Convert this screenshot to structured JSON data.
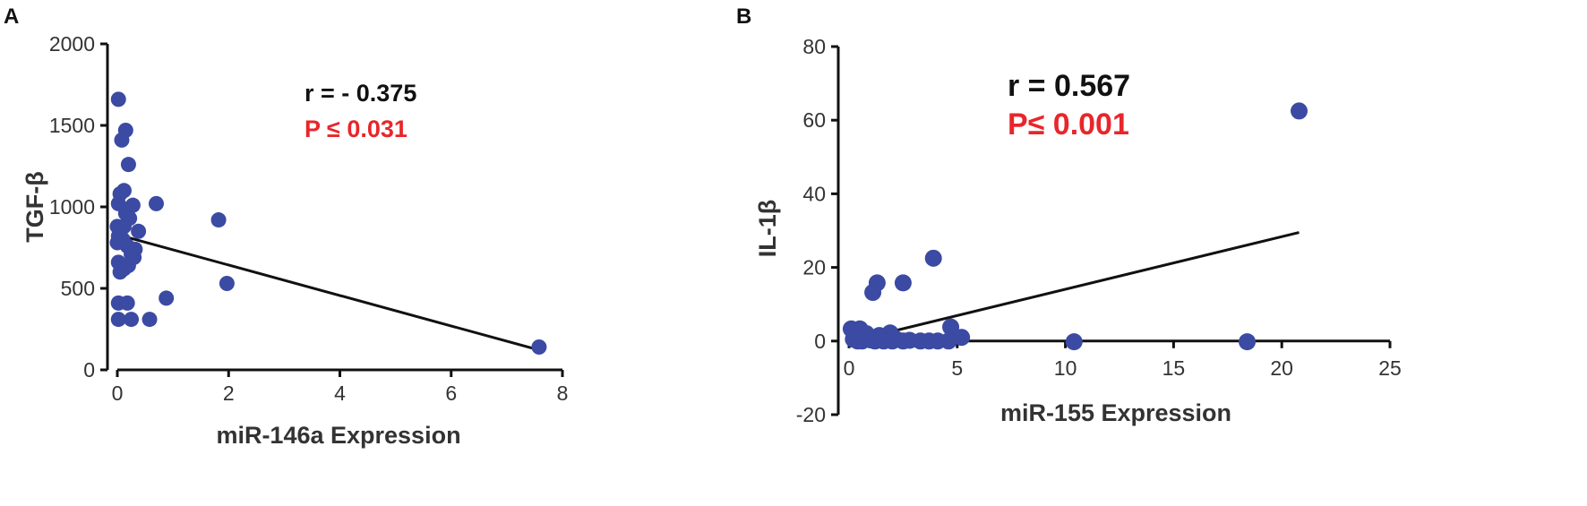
{
  "colors": {
    "point": "#3b4aa3",
    "line": "#111111",
    "p_value": "#e8262b",
    "axis": "#111111"
  },
  "chart_data": [
    {
      "panel": "A",
      "type": "scatter",
      "xlabel": "miR-146a Expression",
      "ylabel": "TGF-β",
      "xlim": [
        0,
        8
      ],
      "ylim": [
        0,
        2000
      ],
      "xticks": [
        "0",
        "2",
        "4",
        "6",
        "8"
      ],
      "yticks": [
        "0",
        "500",
        "1000",
        "1500",
        "2000"
      ],
      "annotations": {
        "r": "r = - 0.375",
        "p": "P ≤ 0.031"
      },
      "trendline": [
        [
          0,
          830
        ],
        [
          7.6,
          120
        ]
      ],
      "points": [
        [
          0.02,
          1660
        ],
        [
          0.15,
          1470
        ],
        [
          0.08,
          1410
        ],
        [
          0.2,
          1260
        ],
        [
          0.12,
          1100
        ],
        [
          0.05,
          1080
        ],
        [
          0.02,
          1020
        ],
        [
          0.7,
          1020
        ],
        [
          0.28,
          1010
        ],
        [
          0.15,
          960
        ],
        [
          0.22,
          930
        ],
        [
          1.82,
          920
        ],
        [
          0.0,
          880
        ],
        [
          0.12,
          880
        ],
        [
          0.38,
          850
        ],
        [
          0.02,
          820
        ],
        [
          0.1,
          800
        ],
        [
          0.0,
          780
        ],
        [
          0.18,
          760
        ],
        [
          0.32,
          740
        ],
        [
          0.25,
          710
        ],
        [
          0.3,
          690
        ],
        [
          0.02,
          660
        ],
        [
          0.2,
          640
        ],
        [
          0.12,
          620
        ],
        [
          0.05,
          600
        ],
        [
          1.97,
          530
        ],
        [
          0.88,
          440
        ],
        [
          0.02,
          410
        ],
        [
          0.18,
          410
        ],
        [
          0.02,
          310
        ],
        [
          0.25,
          310
        ],
        [
          0.58,
          310
        ],
        [
          7.58,
          140
        ]
      ]
    },
    {
      "panel": "B",
      "type": "scatter",
      "xlabel": "miR-155 Expression",
      "ylabel": "IL-1β",
      "xlim": [
        0,
        25
      ],
      "ylim": [
        -20,
        80
      ],
      "xticks": [
        "0",
        "5",
        "10",
        "15",
        "20",
        "25"
      ],
      "yticks": [
        "-20",
        "0",
        "20",
        "40",
        "60",
        "80"
      ],
      "annotations": {
        "r": "r = 0.567",
        "p": "P≤ 0.001"
      },
      "trendline": [
        [
          1.2,
          1.5
        ],
        [
          20.8,
          29.5
        ]
      ],
      "points": [
        [
          20.8,
          62.5
        ],
        [
          3.9,
          22.5
        ],
        [
          1.3,
          15.8
        ],
        [
          2.5,
          15.8
        ],
        [
          1.1,
          13.2
        ],
        [
          4.7,
          3.8
        ],
        [
          0.1,
          3.3
        ],
        [
          0.5,
          3.3
        ],
        [
          0.3,
          2.5
        ],
        [
          1.9,
          2.2
        ],
        [
          0.8,
          2.0
        ],
        [
          1.4,
          1.5
        ],
        [
          5.2,
          1.0
        ],
        [
          0.2,
          0.5
        ],
        [
          0.6,
          0.0
        ],
        [
          1.0,
          0.3
        ],
        [
          1.6,
          0.0
        ],
        [
          2.2,
          0.4
        ],
        [
          2.8,
          0.2
        ],
        [
          3.3,
          0.0
        ],
        [
          4.1,
          0.0
        ],
        [
          4.6,
          0.0
        ],
        [
          10.4,
          -0.2
        ],
        [
          18.4,
          -0.2
        ],
        [
          0.4,
          0.0
        ],
        [
          1.2,
          0.0
        ],
        [
          2.0,
          0.0
        ],
        [
          2.5,
          0.0
        ],
        [
          3.7,
          0.0
        ],
        [
          0.9,
          0.8
        ]
      ]
    }
  ]
}
